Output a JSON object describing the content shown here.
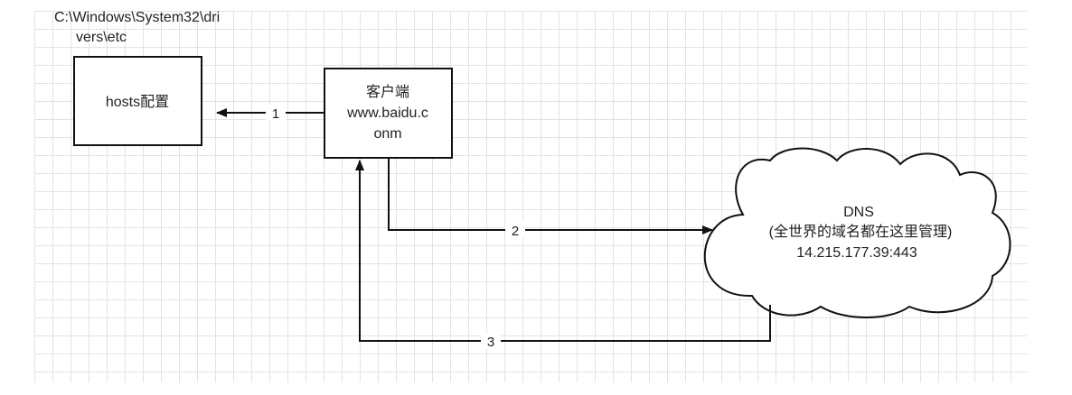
{
  "path_label": {
    "line1": "C:\\Windows\\System32\\dri",
    "line2": "vers\\etc"
  },
  "hosts_box": {
    "label": "hosts配置"
  },
  "client_box": {
    "line1": "客户端",
    "line2": "www.baidu.c",
    "line3": "onm"
  },
  "dns_cloud": {
    "line1": "DNS",
    "line2": "(全世界的域名都在这里管理)",
    "line3": "14.215.177.39:443"
  },
  "edges": {
    "edge1_label": "1",
    "edge2_label": "2",
    "edge3_label": "3"
  },
  "colors": {
    "stroke": "#111111",
    "text": "#222222",
    "grid": "#e3e3e3"
  }
}
